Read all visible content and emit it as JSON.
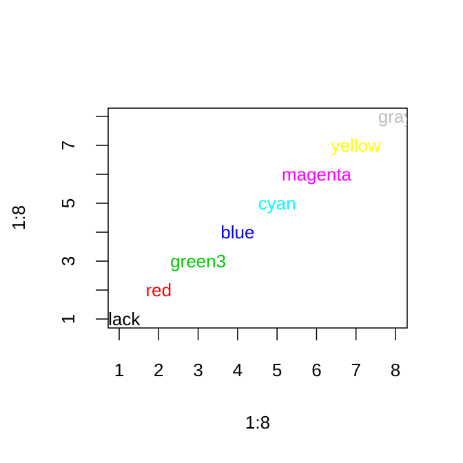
{
  "chart_data": {
    "type": "scatter",
    "title": "",
    "xlabel": "1:8",
    "ylabel": "1:8",
    "xlim": [
      1,
      8
    ],
    "ylim": [
      1,
      8
    ],
    "x_ticks": [
      1,
      2,
      3,
      4,
      5,
      6,
      7,
      8
    ],
    "y_ticks": [
      1,
      2,
      3,
      4,
      5,
      6,
      7,
      8
    ],
    "y_tick_labels": [
      "1",
      "",
      "3",
      "",
      "5",
      "",
      "7",
      ""
    ],
    "grid": false,
    "legend": "none",
    "points": [
      {
        "x": 1,
        "y": 1,
        "label": "black",
        "color": "#000000"
      },
      {
        "x": 2,
        "y": 2,
        "label": "red",
        "color": "#ff0000"
      },
      {
        "x": 3,
        "y": 3,
        "label": "green3",
        "color": "#00cd00"
      },
      {
        "x": 4,
        "y": 4,
        "label": "blue",
        "color": "#0000ff"
      },
      {
        "x": 5,
        "y": 5,
        "label": "cyan",
        "color": "#00ffff"
      },
      {
        "x": 6,
        "y": 6,
        "label": "magenta",
        "color": "#ff00ff"
      },
      {
        "x": 7,
        "y": 7,
        "label": "yellow",
        "color": "#ffff00"
      },
      {
        "x": 8,
        "y": 8,
        "label": "gray",
        "color": "#bebebe"
      }
    ]
  }
}
